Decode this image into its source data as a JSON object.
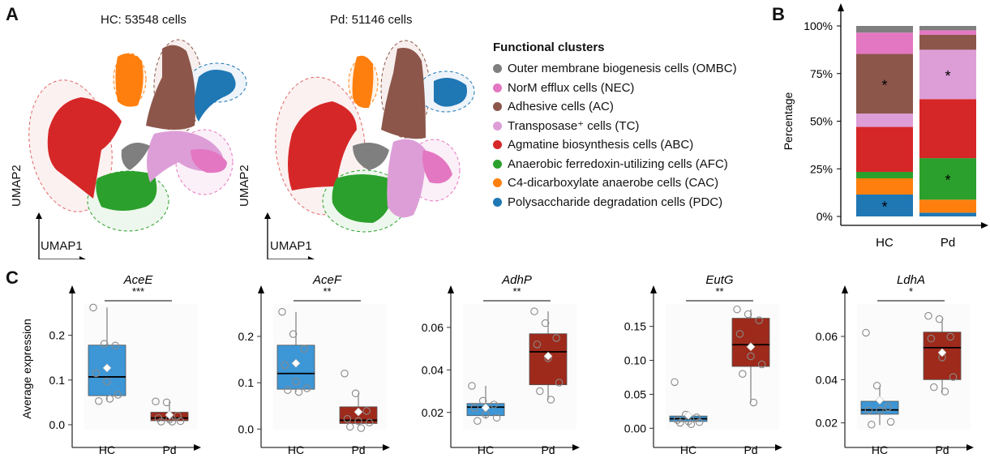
{
  "panels": {
    "a": "A",
    "b": "B",
    "c": "C"
  },
  "umap": {
    "hc_title": "HC: 53548 cells",
    "pd_title": "Pd: 51146 cells",
    "xlabel": "UMAP1",
    "ylabel": "UMAP2"
  },
  "legend": {
    "title": "Functional clusters",
    "items": [
      {
        "label": "Outer membrane biogenesis cells (OMBC)",
        "color": "#7f7f7f"
      },
      {
        "label": "NorM efflux cells (NEC)",
        "color": "#e377c2"
      },
      {
        "label": "Adhesive cells (AC)",
        "color": "#8c564b"
      },
      {
        "label": "Transposase⁺ cells (TC)",
        "color": "#dd9ed8"
      },
      {
        "label": "Agmatine biosynthesis cells (ABC)",
        "color": "#d62728"
      },
      {
        "label": "Anaerobic ferredoxin-utilizing cells (AFC)",
        "color": "#2ca02c"
      },
      {
        "label": "C4-dicarboxylate anaerobe cells (CAC)",
        "color": "#ff7f0e"
      },
      {
        "label": "Polysaccharide degradation cells (PDC)",
        "color": "#1f77b4"
      }
    ]
  },
  "chart_data": [
    {
      "id": "stacked",
      "type": "bar",
      "stacked": true,
      "title": "",
      "xlabel": "",
      "ylabel": "Percentage",
      "ylim": [
        0,
        100
      ],
      "yticks": [
        "0%",
        "25%",
        "50%",
        "75%",
        "100%"
      ],
      "categories": [
        "HC",
        "Pd"
      ],
      "series": [
        {
          "name": "PDC",
          "color": "#1f77b4",
          "values": [
            11.5,
            2.0
          ],
          "star": [
            true,
            false
          ]
        },
        {
          "name": "CAC",
          "color": "#ff7f0e",
          "values": [
            8.5,
            6.8
          ],
          "star": [
            false,
            false
          ]
        },
        {
          "name": "AFC",
          "color": "#2ca02c",
          "values": [
            3.4,
            21.8
          ],
          "star": [
            false,
            true
          ]
        },
        {
          "name": "ABC",
          "color": "#d62728",
          "values": [
            23.6,
            31.0
          ],
          "star": [
            false,
            false
          ]
        },
        {
          "name": "TC",
          "color": "#dd9ed8",
          "values": [
            7.0,
            25.9
          ],
          "star": [
            false,
            true
          ]
        },
        {
          "name": "AC",
          "color": "#8c564b",
          "values": [
            31.3,
            7.9
          ],
          "star": [
            true,
            false
          ]
        },
        {
          "name": "NEC",
          "color": "#e377c2",
          "values": [
            11.2,
            2.3
          ],
          "star": [
            false,
            false
          ]
        },
        {
          "name": "OMBC",
          "color": "#7f7f7f",
          "values": [
            3.5,
            2.3
          ],
          "star": [
            false,
            false
          ]
        }
      ],
      "star_label": "*"
    },
    {
      "id": "AceE",
      "type": "box",
      "title": "AceE",
      "significance": "***",
      "ylabel": "Average expression",
      "categories": [
        "HC",
        "Pd"
      ],
      "ylim": [
        -0.02,
        0.27
      ],
      "yticks": [
        0.0,
        0.1,
        0.2
      ],
      "ytick_labels": [
        "0.0",
        "0.1",
        "0.2"
      ],
      "boxes": [
        {
          "q1": 0.065,
          "median": 0.107,
          "q3": 0.178,
          "whisker_low": 0.055,
          "whisker_high": 0.262,
          "mean": 0.127,
          "points": [
            0.262,
            0.181,
            0.177,
            0.115,
            0.097,
            0.067,
            0.053,
            0.058
          ]
        },
        {
          "q1": 0.009,
          "median": 0.015,
          "q3": 0.028,
          "whisker_low": 0.007,
          "whisker_high": 0.052,
          "mean": 0.022,
          "points": [
            0.052,
            0.05,
            0.02,
            0.015,
            0.012,
            0.008,
            0.007,
            0.007
          ]
        }
      ]
    },
    {
      "id": "AceF",
      "type": "box",
      "title": "AceF",
      "significance": "**",
      "ylabel": "",
      "categories": [
        "HC",
        "Pd"
      ],
      "ylim": [
        -0.01,
        0.27
      ],
      "yticks": [
        0.0,
        0.1,
        0.2
      ],
      "ytick_labels": [
        "0.0",
        "0.1",
        "0.2"
      ],
      "boxes": [
        {
          "q1": 0.086,
          "median": 0.12,
          "q3": 0.181,
          "whisker_low": 0.08,
          "whisker_high": 0.253,
          "mean": 0.142,
          "points": [
            0.253,
            0.205,
            0.173,
            0.138,
            0.102,
            0.088,
            0.084,
            0.08
          ]
        },
        {
          "q1": 0.012,
          "median": 0.019,
          "q3": 0.048,
          "whisker_low": 0.012,
          "whisker_high": 0.077,
          "mean": 0.037,
          "points": [
            0.12,
            0.077,
            0.039,
            0.022,
            0.017,
            0.014,
            0.005,
            0.002
          ]
        }
      ]
    },
    {
      "id": "AdhP",
      "type": "box",
      "title": "AdhP",
      "significance": "**",
      "ylabel": "",
      "categories": [
        "HC",
        "Pd"
      ],
      "ylim": [
        0.01,
        0.071
      ],
      "yticks": [
        0.02,
        0.04,
        0.06
      ],
      "ytick_labels": [
        "0.02",
        "0.04",
        "0.06"
      ],
      "boxes": [
        {
          "q1": 0.0185,
          "median": 0.0225,
          "q3": 0.0242,
          "whisker_low": 0.017,
          "whisker_high": 0.0325,
          "mean": 0.0222,
          "points": [
            0.0325,
            0.0255,
            0.0237,
            0.0222,
            0.019,
            0.0175,
            0.016
          ]
        },
        {
          "q1": 0.033,
          "median": 0.0485,
          "q3": 0.057,
          "whisker_low": 0.026,
          "whisker_high": 0.0675,
          "mean": 0.0465,
          "points": [
            0.0675,
            0.062,
            0.055,
            0.052,
            0.0455,
            0.034,
            0.03,
            0.026
          ]
        }
      ]
    },
    {
      "id": "EutG",
      "type": "box",
      "title": "EutG",
      "significance": "**",
      "ylabel": "",
      "categories": [
        "HC",
        "Pd"
      ],
      "ylim": [
        -0.008,
        0.183
      ],
      "yticks": [
        0.0,
        0.05,
        0.1,
        0.15
      ],
      "ytick_labels": [
        "0.00",
        "0.05",
        "0.10",
        "0.15"
      ],
      "boxes": [
        {
          "q1": 0.01,
          "median": 0.014,
          "q3": 0.018,
          "whisker_low": 0.006,
          "whisker_high": 0.02,
          "mean": 0.019,
          "points": [
            0.068,
            0.02,
            0.016,
            0.012,
            0.01,
            0.009,
            0.008,
            0.006
          ]
        },
        {
          "q1": 0.091,
          "median": 0.123,
          "q3": 0.162,
          "whisker_low": 0.038,
          "whisker_high": 0.175,
          "mean": 0.12,
          "points": [
            0.175,
            0.168,
            0.159,
            0.139,
            0.106,
            0.094,
            0.08,
            0.038
          ]
        }
      ]
    },
    {
      "id": "LdhA",
      "type": "box",
      "title": "LdhA",
      "significance": "*",
      "ylabel": "",
      "categories": [
        "HC",
        "Pd"
      ],
      "ylim": [
        0.015,
        0.075
      ],
      "yticks": [
        0.02,
        0.04,
        0.06
      ],
      "ytick_labels": [
        "0.02",
        "0.04",
        "0.06"
      ],
      "boxes": [
        {
          "q1": 0.024,
          "median": 0.026,
          "q3": 0.03,
          "whisker_low": 0.019,
          "whisker_high": 0.037,
          "mean": 0.0305,
          "points": [
            0.0617,
            0.0372,
            0.0272,
            0.0258,
            0.0258,
            0.0205,
            0.0192
          ]
        },
        {
          "q1": 0.04,
          "median": 0.0548,
          "q3": 0.062,
          "whisker_low": 0.034,
          "whisker_high": 0.068,
          "mean": 0.0525,
          "points": [
            0.0695,
            0.068,
            0.0598,
            0.059,
            0.0503,
            0.0412,
            0.0365,
            0.0345
          ]
        }
      ]
    }
  ],
  "box_colors": {
    "HC": "#3d96d6",
    "Pd": "#9e2a1b"
  }
}
